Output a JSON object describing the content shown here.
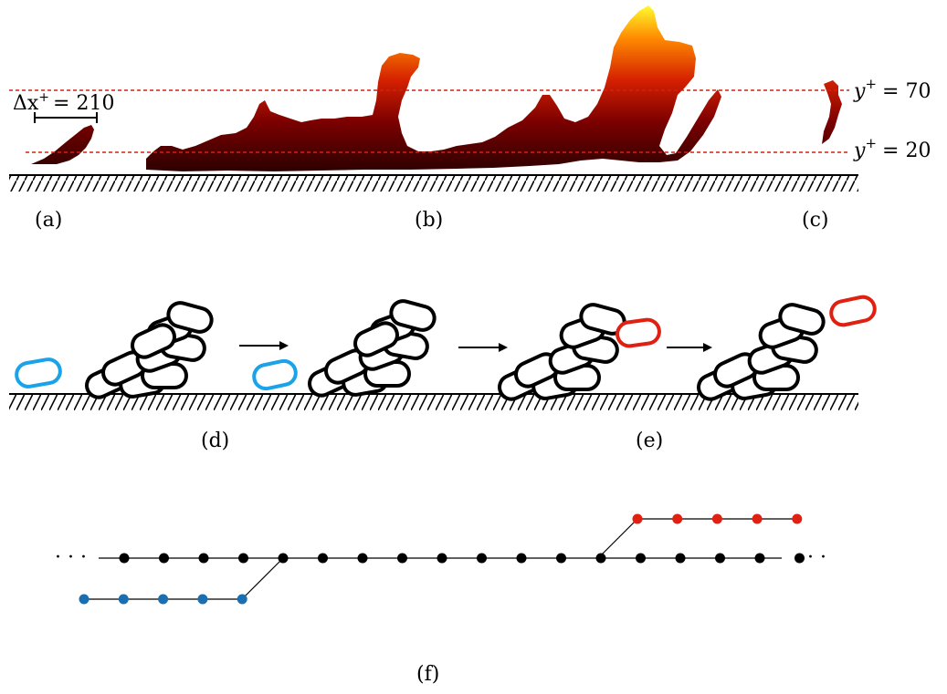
{
  "panels": {
    "a": "(a)",
    "b": "(b)",
    "c": "(c)",
    "d": "(d)",
    "e": "(e)",
    "f": "(f)"
  },
  "scale_bar": {
    "lhs": "Δx",
    "sup": "+",
    "rhs": "= 210"
  },
  "levels": [
    {
      "lhs": "y",
      "sup": "+",
      "rhs": "= 70"
    },
    {
      "lhs": "y",
      "sup": "+",
      "rhs": "= 20"
    }
  ],
  "ellipsis": "· · ·",
  "colors": {
    "reference_line": "#d62010",
    "blue_capsule": "#1aa3e8",
    "red_capsule": "#e02010",
    "blue_node": "#1a6fb0",
    "red_node": "#e02010",
    "black_node": "#000000"
  },
  "chain": {
    "blue_nodes": 5,
    "black_nodes": 18,
    "red_nodes": 5
  }
}
